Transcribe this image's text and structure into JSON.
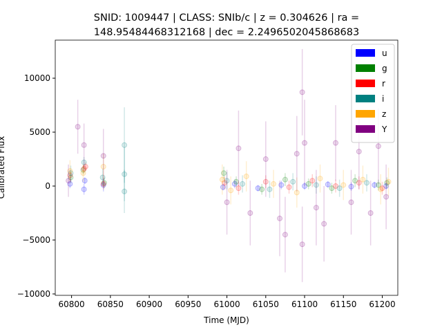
{
  "chart_data": {
    "type": "scatter",
    "title": [
      "SNID: 1009447 | CLASS: SNIb/c | z = 0.304626 | ra =",
      "148.95484468312168 | dec = 2.2496502045868683"
    ],
    "x_label": "Time (MJD)",
    "y_label": "Calibrated Flux",
    "xlim": [
      60779,
      61220
    ],
    "ylim": [
      -10130,
      13530
    ],
    "xticks": [
      60800,
      60850,
      60900,
      60950,
      61000,
      61050,
      61100,
      61150,
      61200
    ],
    "yticks": [
      {
        "value": -10000,
        "label": "−10000"
      },
      {
        "value": -5000,
        "label": "−5000"
      },
      0,
      5000,
      10000
    ],
    "legend": "upper right",
    "grid": false,
    "series": [
      {
        "name": "u",
        "color": "#0000ff",
        "x": [
          60798,
          60816,
          60817,
          60841,
          60995,
          61010,
          61040,
          61070,
          61100,
          61130,
          61160,
          61190,
          61205
        ],
        "values": [
          200,
          -300,
          500,
          100,
          -100,
          200,
          -200,
          100,
          0,
          150,
          -50,
          100,
          0
        ],
        "errors": [
          400,
          500,
          300,
          600,
          300,
          400,
          300,
          400,
          350,
          300,
          400,
          300,
          300
        ]
      },
      {
        "name": "g",
        "color": "#008000",
        "x": [
          60799,
          60815,
          60842,
          60996,
          61012,
          61045,
          61075,
          61105,
          61135,
          61165,
          61195,
          61206
        ],
        "values": [
          800,
          1500,
          300,
          1200,
          400,
          -300,
          600,
          200,
          -200,
          500,
          100,
          300
        ],
        "errors": [
          500,
          400,
          500,
          600,
          500,
          500,
          600,
          500,
          500,
          600,
          500,
          500
        ]
      },
      {
        "name": "r",
        "color": "#ff0000",
        "x": [
          60798,
          60816,
          60818,
          60841,
          60997,
          61015,
          61050,
          61080,
          61110,
          61140,
          61170,
          61200
        ],
        "values": [
          1000,
          1600,
          1800,
          200,
          300,
          -200,
          400,
          -100,
          500,
          0,
          300,
          -200
        ],
        "errors": [
          500,
          400,
          400,
          500,
          600,
          600,
          600,
          600,
          600,
          600,
          600,
          600
        ]
      },
      {
        "name": "i",
        "color": "#008080",
        "x": [
          60799,
          60816,
          60840,
          60868,
          60868,
          60868,
          61000,
          61020,
          61055,
          61085,
          61115,
          61145,
          61180
        ],
        "values": [
          1200,
          2200,
          800,
          3800,
          1100,
          -500,
          500,
          200,
          -300,
          400,
          100,
          -200,
          300
        ],
        "errors": [
          700,
          500,
          800,
          3500,
          2500,
          2000,
          800,
          800,
          800,
          800,
          800,
          800,
          800
        ]
      },
      {
        "name": "z",
        "color": "#ffa500",
        "x": [
          60798,
          60815,
          60841,
          60994,
          61005,
          61025,
          61060,
          61090,
          61120,
          61150,
          61175,
          61198,
          61208
        ],
        "values": [
          1400,
          1200,
          1800,
          600,
          -400,
          900,
          200,
          -600,
          700,
          100,
          600,
          -300,
          400
        ],
        "errors": [
          1000,
          800,
          1200,
          1400,
          1300,
          1400,
          1300,
          1400,
          1300,
          1400,
          1300,
          1400,
          1300
        ]
      },
      {
        "name": "Y",
        "color": "#800080",
        "x": [
          60796,
          60808,
          60816,
          60841,
          61000,
          61015,
          61030,
          61050,
          61068,
          61075,
          61090,
          61097,
          61097,
          61100,
          61115,
          61125,
          61140,
          61160,
          61170,
          61185,
          61195,
          61205
        ],
        "values": [
          500,
          5500,
          3800,
          2800,
          -1500,
          3500,
          -2500,
          2500,
          -3000,
          -4500,
          3000,
          8700,
          -5400,
          4000,
          -2000,
          -3500,
          4000,
          -1500,
          3200,
          -2500,
          3700,
          -1000
        ],
        "errors": [
          1500,
          2500,
          2000,
          2500,
          3000,
          3500,
          3000,
          3500,
          3500,
          3500,
          3500,
          4000,
          3500,
          4000,
          3500,
          3500,
          3500,
          3000,
          3500,
          3000,
          3500,
          3000
        ]
      }
    ]
  }
}
